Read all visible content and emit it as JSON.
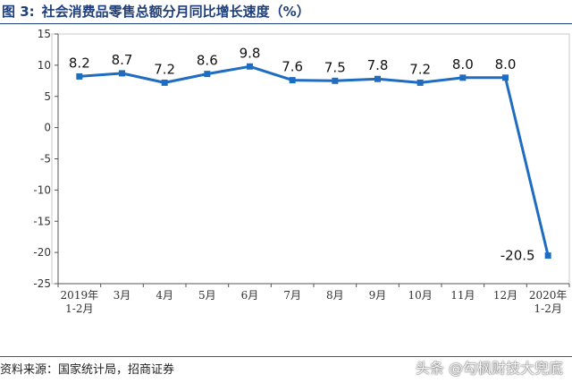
{
  "figure": {
    "number": "图 3:",
    "title": "社会消费品零售总额分月同比增长速度（%）",
    "source": "资料来源：国家统计局，招商证券",
    "watermark": "头条 @勾枫财技大兜底"
  },
  "chart_data": {
    "type": "line",
    "categories": [
      [
        "2019年",
        "1-2月"
      ],
      [
        "3月"
      ],
      [
        "4月"
      ],
      [
        "5月"
      ],
      [
        "6月"
      ],
      [
        "7月"
      ],
      [
        "8月"
      ],
      [
        "9月"
      ],
      [
        "10月"
      ],
      [
        "11月"
      ],
      [
        "12月"
      ],
      [
        "2020年",
        "1-2月"
      ]
    ],
    "series": [
      {
        "values": [
          8.2,
          8.7,
          7.2,
          8.6,
          9.8,
          7.6,
          7.5,
          7.8,
          7.2,
          8.0,
          8.0,
          -20.5
        ],
        "data_labels": [
          "8.2",
          "8.7",
          "7.2",
          "8.6",
          "9.8",
          "7.6",
          "7.5",
          "7.8",
          "7.2",
          "8.0",
          "8.0",
          "-20.5"
        ],
        "color": "#1f6dc0"
      }
    ],
    "ylim": [
      -25,
      15
    ],
    "yticks": [
      15,
      10,
      5,
      0,
      -5,
      -10,
      -15,
      -20,
      -25
    ],
    "grid": false,
    "legend": "none"
  }
}
